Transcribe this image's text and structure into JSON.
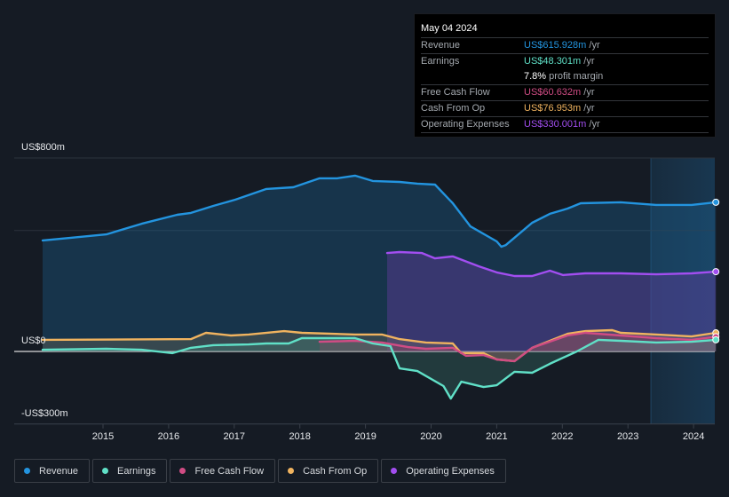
{
  "tooltip": {
    "date": "May 04 2024",
    "rows": [
      {
        "label": "Revenue",
        "value": "US$615.928m",
        "unit": " /yr",
        "color": "#2394df"
      },
      {
        "label": "Earnings",
        "value": "US$48.301m",
        "unit": " /yr",
        "color": "#60e0c7"
      },
      {
        "label": "",
        "value": "7.8%",
        "unit": " profit margin",
        "color": "#ffffff"
      },
      {
        "label": "Free Cash Flow",
        "value": "US$60.632m",
        "unit": " /yr",
        "color": "#d04c84"
      },
      {
        "label": "Cash From Op",
        "value": "US$76.953m",
        "unit": " /yr",
        "color": "#f0b35f"
      },
      {
        "label": "Operating Expenses",
        "value": "US$330.001m",
        "unit": " /yr",
        "color": "#a24ef0"
      }
    ]
  },
  "legend": [
    {
      "label": "Revenue",
      "color": "#2394df"
    },
    {
      "label": "Earnings",
      "color": "#60e0c7"
    },
    {
      "label": "Free Cash Flow",
      "color": "#d04c84"
    },
    {
      "label": "Cash From Op",
      "color": "#f0b35f"
    },
    {
      "label": "Operating Expenses",
      "color": "#a24ef0"
    }
  ],
  "chart_data": {
    "type": "area",
    "title": "",
    "xlabel": "",
    "ylabel": "",
    "ylim": [
      -300,
      800
    ],
    "xlim": [
      2014.08,
      2024.34
    ],
    "y_tick_labels": [
      {
        "value": 800,
        "label": "US$800m"
      },
      {
        "value": 0,
        "label": "US$0"
      },
      {
        "value": -300,
        "label": "-US$300m"
      }
    ],
    "gridlines": [
      800,
      500,
      0
    ],
    "x_ticks": [
      2015,
      2016,
      2017,
      2018,
      2019,
      2020,
      2021,
      2022,
      2023,
      2024
    ],
    "highlight_from": 2023.35,
    "series": [
      {
        "name": "Revenue",
        "color": "#2394df",
        "x": [
          2014.08,
          2014.51,
          2015.05,
          2015.59,
          2016.13,
          2016.34,
          2016.68,
          2017.02,
          2017.49,
          2017.9,
          2018.3,
          2018.57,
          2018.84,
          2019.11,
          2019.52,
          2019.79,
          2020.06,
          2020.33,
          2020.6,
          2021.0,
          2021.07,
          2021.14,
          2021.54,
          2021.81,
          2022.08,
          2022.28,
          2022.89,
          2023.43,
          2023.97,
          2024.34
        ],
        "values": [
          459,
          470,
          484,
          528,
          565,
          573,
          602,
          628,
          672,
          679,
          716,
          716,
          727,
          705,
          701,
          694,
          690,
          613,
          517,
          455,
          433,
          440,
          532,
          569,
          591,
          613,
          617,
          606,
          606,
          617
        ]
      },
      {
        "name": "Earnings",
        "color": "#60e0c7",
        "x": [
          2014.08,
          2015.05,
          2015.59,
          2016.06,
          2016.34,
          2016.68,
          2017.22,
          2017.49,
          2017.83,
          2018.03,
          2018.84,
          2019.11,
          2019.38,
          2019.52,
          2019.79,
          2020.19,
          2020.3,
          2020.46,
          2020.8,
          2021.0,
          2021.27,
          2021.54,
          2021.81,
          2022.22,
          2022.55,
          2022.89,
          2023.43,
          2023.97,
          2024.34
        ],
        "values": [
          7,
          11,
          7,
          -7,
          15,
          26,
          29,
          33,
          33,
          55,
          55,
          33,
          22,
          -70,
          -81,
          -143,
          -195,
          -125,
          -147,
          -140,
          -84,
          -88,
          -51,
          0,
          48,
          44,
          37,
          40,
          48
        ]
      },
      {
        "name": "Free Cash Flow",
        "color": "#d04c84",
        "x": [
          2018.3,
          2018.84,
          2019.25,
          2019.65,
          2019.92,
          2020.33,
          2020.53,
          2020.8,
          2021.0,
          2021.27,
          2021.54,
          2022.08,
          2022.35,
          2022.89,
          2023.43,
          2023.97,
          2024.34
        ],
        "values": [
          40,
          44,
          37,
          18,
          11,
          15,
          -18,
          -15,
          -33,
          -40,
          15,
          66,
          77,
          66,
          55,
          48,
          61
        ]
      },
      {
        "name": "Cash From Op",
        "color": "#f0b35f",
        "x": [
          2014.08,
          2016.34,
          2016.57,
          2016.95,
          2017.22,
          2017.76,
          2018.03,
          2018.84,
          2019.25,
          2019.52,
          2019.92,
          2020.33,
          2020.46,
          2020.8,
          2021.0,
          2021.27,
          2021.54,
          2022.08,
          2022.35,
          2022.76,
          2022.89,
          2023.43,
          2023.97,
          2024.34
        ],
        "values": [
          48,
          51,
          77,
          66,
          70,
          84,
          77,
          70,
          70,
          51,
          37,
          33,
          -7,
          -7,
          -33,
          -40,
          15,
          73,
          84,
          88,
          77,
          70,
          62,
          77
        ]
      },
      {
        "name": "Operating Expenses",
        "color": "#a24ef0",
        "x": [
          2019.33,
          2019.52,
          2019.86,
          2020.06,
          2020.33,
          2020.73,
          2021.0,
          2021.27,
          2021.54,
          2021.81,
          2022.01,
          2022.35,
          2022.89,
          2023.43,
          2023.97,
          2024.34
        ],
        "values": [
          407,
          411,
          407,
          385,
          393,
          352,
          327,
          312,
          312,
          334,
          316,
          323,
          323,
          319,
          323,
          330
        ]
      }
    ]
  }
}
